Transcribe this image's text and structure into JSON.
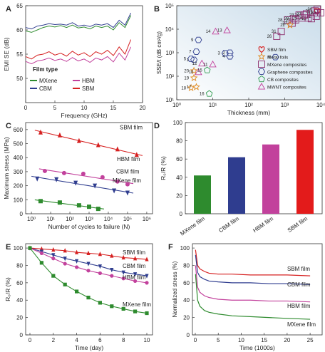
{
  "figure": {
    "panels": [
      "A",
      "B",
      "C",
      "D",
      "E",
      "F"
    ]
  },
  "chart_data": [
    {
      "panel": "A",
      "type": "line",
      "xlabel": "Frequency (GHz)",
      "ylabel": "EMI SE (dB)",
      "xlim": [
        0,
        20
      ],
      "ylim": [
        45,
        65
      ],
      "xticks": [
        "0",
        "5",
        "10",
        "15",
        "20"
      ],
      "yticks": [
        "50",
        "55",
        "60",
        "65"
      ],
      "legend_title": "Film type",
      "legend": [
        {
          "name": "MXene",
          "color": "#2e8b2e"
        },
        {
          "name": "HBM",
          "color": "#c2419c"
        },
        {
          "name": "CBM",
          "color": "#2f3d8f"
        },
        {
          "name": "SBM",
          "color": "#d62020"
        }
      ],
      "series": [
        {
          "name": "CBM",
          "color": "#2f3d8f",
          "x": [
            0,
            1,
            2,
            3,
            4,
            5,
            6,
            7,
            8,
            9,
            10,
            11,
            12,
            13,
            14,
            15,
            16,
            17,
            18
          ],
          "y": [
            60.5,
            60.2,
            60.8,
            61.0,
            61.3,
            61.1,
            61.2,
            61.0,
            61.5,
            60.8,
            61.0,
            60.7,
            61.2,
            61.0,
            61.3,
            60.5,
            62.0,
            61.0,
            63.5
          ]
        },
        {
          "name": "MXene",
          "color": "#2e8b2e",
          "x": [
            0,
            1,
            2,
            3,
            4,
            5,
            6,
            7,
            8,
            9,
            10,
            11,
            12,
            13,
            14,
            15,
            16,
            17,
            18
          ],
          "y": [
            59.8,
            59.5,
            60.0,
            60.5,
            60.8,
            60.6,
            60.9,
            60.5,
            61.0,
            60.4,
            60.6,
            60.2,
            60.8,
            60.5,
            60.8,
            60.0,
            61.5,
            60.5,
            63.0
          ]
        },
        {
          "name": "SBM",
          "color": "#d62020",
          "x": [
            0,
            1,
            2,
            3,
            4,
            5,
            6,
            7,
            8,
            9,
            10,
            11,
            12,
            13,
            14,
            15,
            16,
            17,
            18
          ],
          "y": [
            54.5,
            54.0,
            54.8,
            55.0,
            55.5,
            54.8,
            55.2,
            54.6,
            55.6,
            54.8,
            55.3,
            54.5,
            55.5,
            55.0,
            55.8,
            54.7,
            56.5,
            55.0,
            58.0
          ]
        },
        {
          "name": "HBM",
          "color": "#c2419c",
          "x": [
            0,
            1,
            2,
            3,
            4,
            5,
            6,
            7,
            8,
            9,
            10,
            11,
            12,
            13,
            14,
            15,
            16,
            17,
            18
          ],
          "y": [
            53.5,
            53.0,
            53.6,
            53.8,
            54.2,
            53.7,
            54.0,
            53.5,
            54.3,
            53.6,
            54.0,
            53.3,
            54.2,
            53.8,
            54.5,
            53.4,
            55.2,
            53.8,
            56.5
          ]
        }
      ]
    },
    {
      "panel": "B",
      "type": "scatter",
      "xlabel": "Thickness (mm)",
      "ylabel": "SSE/t (dB cm²/g)",
      "xscale": "log",
      "yscale": "log",
      "xticks": [
        "10⁰",
        "10¹",
        "10²",
        "10³",
        "10⁴"
      ],
      "yticks": [
        "10¹",
        "10²",
        "10³",
        "10⁴",
        "10⁵"
      ],
      "legend": [
        {
          "name": "SBM film",
          "color": "#d62020",
          "marker": "heart"
        },
        {
          "name": "Metal foils",
          "color": "#e08a20",
          "marker": "star"
        },
        {
          "name": "MXene composites",
          "color": "#8b2b6b",
          "marker": "square"
        },
        {
          "name": "Graphene composites",
          "color": "#2f3d8f",
          "marker": "hexagon"
        },
        {
          "name": "CB composites",
          "color": "#2e9b4e",
          "marker": "pentagon"
        },
        {
          "name": "MWNT composites",
          "color": "#c2419c",
          "marker": "triangle"
        }
      ],
      "points": [
        {
          "label": "SBM",
          "group": "SBM film",
          "x": 8000,
          "y": 60000
        },
        {
          "label": "36",
          "group": "MXene composites",
          "x": 8000,
          "y": 70000
        },
        {
          "label": "35",
          "group": "MXene composites",
          "x": 7000,
          "y": 60000
        },
        {
          "label": "30",
          "group": "MXene composites",
          "x": 10000,
          "y": 50000
        },
        {
          "label": "31",
          "group": "MXene composites",
          "x": 8000,
          "y": 50000
        },
        {
          "label": "32",
          "group": "MXene composites",
          "x": 7500,
          "y": 35000
        },
        {
          "label": "33",
          "group": "MXene composites",
          "x": 5500,
          "y": 28000
        },
        {
          "label": "34",
          "group": "MXene composites",
          "x": 4500,
          "y": 30000
        },
        {
          "label": "24",
          "group": "MXene composites",
          "x": 3500,
          "y": 40000
        },
        {
          "label": "21",
          "group": "MXene composites",
          "x": 4000,
          "y": 45000
        },
        {
          "label": "23",
          "group": "MXene composites",
          "x": 2500,
          "y": 40000
        },
        {
          "label": "25",
          "group": "MXene composites",
          "x": 3000,
          "y": 30000
        },
        {
          "label": "27",
          "group": "MXene composites",
          "x": 2000,
          "y": 25000
        },
        {
          "label": "28",
          "group": "MXene composites",
          "x": 1200,
          "y": 25000
        },
        {
          "label": "29",
          "group": "MXene composites",
          "x": 1800,
          "y": 28000
        },
        {
          "label": "37",
          "group": "MXene composites",
          "x": 1600,
          "y": 18000
        },
        {
          "label": "26",
          "group": "MXene composites",
          "x": 600,
          "y": 5000
        },
        {
          "label": "31",
          "group": "MXene composites",
          "x": 800,
          "y": 8000
        },
        {
          "label": "22",
          "group": "Metal foils",
          "x": 1400,
          "y": 15000
        },
        {
          "label": "9",
          "group": "Graphene composites",
          "x": 4,
          "y": 3500
        },
        {
          "label": "7",
          "group": "Graphene composites",
          "x": 3.5,
          "y": 1100
        },
        {
          "label": "4",
          "group": "Graphene composites",
          "x": 30,
          "y": 700
        },
        {
          "label": "2",
          "group": "Graphene composites",
          "x": 30,
          "y": 1000
        },
        {
          "label": "3",
          "group": "Graphene composites",
          "x": 22,
          "y": 950
        },
        {
          "label": "5",
          "group": "Graphene composites",
          "x": 2.5,
          "y": 550
        },
        {
          "label": "1",
          "group": "Graphene composites",
          "x": 3,
          "y": 500
        },
        {
          "label": "6",
          "group": "Graphene composites",
          "x": 550,
          "y": 650
        },
        {
          "label": "14",
          "group": "MWNT composites",
          "x": 12,
          "y": 8000
        },
        {
          "label": "13",
          "group": "MWNT composites",
          "x": 25,
          "y": 9000
        },
        {
          "label": "12",
          "group": "MWNT composites",
          "x": 5,
          "y": 350
        },
        {
          "label": "11",
          "group": "MWNT composites",
          "x": 10,
          "y": 320
        },
        {
          "label": "20",
          "group": "Metal foils",
          "x": 3,
          "y": 170
        },
        {
          "label": "10",
          "group": "MWNT composites",
          "x": 4,
          "y": 150
        },
        {
          "label": "19",
          "group": "Metal foils",
          "x": 3,
          "y": 85
        },
        {
          "label": "15",
          "group": "CB composites",
          "x": 7,
          "y": 180
        },
        {
          "label": "18",
          "group": "Metal foils",
          "x": 2.5,
          "y": 32
        },
        {
          "label": "17",
          "group": "Metal foils",
          "x": 3.5,
          "y": 35
        },
        {
          "label": "16",
          "group": "CB composites",
          "x": 8,
          "y": 18
        }
      ]
    },
    {
      "panel": "C",
      "type": "scatter",
      "xlabel": "Number of cycles to failure (N)",
      "ylabel": "Maximum stress (MPa)",
      "xscale": "log",
      "xticks": [
        "10⁰",
        "10¹",
        "10²",
        "10³",
        "10⁴",
        "10⁵",
        "10⁶"
      ],
      "yticks": [
        "0",
        "100",
        "200",
        "300",
        "400",
        "500",
        "600"
      ],
      "ylim": [
        0,
        650
      ],
      "series": [
        {
          "name": "SBM film",
          "color": "#d62020",
          "marker": "triangle",
          "x": [
            3,
            30,
            300,
            3000,
            30000,
            300000
          ],
          "y": [
            580,
            560,
            520,
            490,
            460,
            420
          ]
        },
        {
          "name": "HBM film",
          "color": "#c2419c",
          "marker": "circle",
          "x": [
            5,
            50,
            500,
            5000,
            30000,
            100000
          ],
          "y": [
            305,
            290,
            285,
            260,
            230,
            210
          ]
        },
        {
          "name": "CBM film",
          "color": "#2f3d8f",
          "marker": "triangle-down",
          "x": [
            2,
            20,
            200,
            2000,
            20000,
            100000
          ],
          "y": [
            250,
            245,
            220,
            200,
            165,
            150
          ]
        },
        {
          "name": "MXene film",
          "color": "#2e8b2e",
          "marker": "square",
          "x": [
            3,
            30,
            300,
            1000,
            3000
          ],
          "y": [
            90,
            80,
            60,
            50,
            35
          ]
        }
      ]
    },
    {
      "panel": "D",
      "type": "bar",
      "ylabel": "R₀/R (%)",
      "ylim": [
        0,
        100
      ],
      "yticks": [
        "0",
        "20",
        "40",
        "60",
        "80",
        "100"
      ],
      "categories": [
        "MXene film",
        "CBM film",
        "HBM film",
        "SBM film"
      ],
      "values": [
        42,
        62,
        76,
        92
      ],
      "colors": [
        "#2e8b2e",
        "#2f3d8f",
        "#c2419c",
        "#e31b1b"
      ]
    },
    {
      "panel": "E",
      "type": "line",
      "xlabel": "Time (day)",
      "ylabel": "R₀/R (%)",
      "xlim": [
        0,
        10
      ],
      "ylim": [
        0,
        105
      ],
      "xticks": [
        "0",
        "2",
        "4",
        "6",
        "8",
        "10"
      ],
      "yticks": [
        "0",
        "20",
        "40",
        "60",
        "80",
        "100"
      ],
      "x": [
        0,
        1,
        2,
        3,
        4,
        5,
        6,
        7,
        8,
        9,
        10
      ],
      "series": [
        {
          "name": "SBM film",
          "color": "#d62020",
          "marker": "triangle",
          "values": [
            100,
            99,
            98,
            97,
            95,
            94,
            93,
            91,
            89,
            88,
            87
          ]
        },
        {
          "name": "CBM film",
          "color": "#2f3d8f",
          "marker": "triangle-down",
          "values": [
            100,
            96,
            92,
            88,
            85,
            82,
            79,
            75,
            72,
            70,
            68
          ]
        },
        {
          "name": "HBM film",
          "color": "#c2419c",
          "marker": "circle",
          "values": [
            100,
            94,
            88,
            82,
            78,
            74,
            71,
            68,
            65,
            62,
            60
          ]
        },
        {
          "name": "MXene film",
          "color": "#2e8b2e",
          "marker": "square",
          "values": [
            100,
            83,
            68,
            58,
            50,
            43,
            37,
            33,
            30,
            27,
            25
          ]
        }
      ]
    },
    {
      "panel": "F",
      "type": "line",
      "xlabel": "Time (1000s)",
      "ylabel": "Normalized stress (%)",
      "xlim": [
        0,
        27
      ],
      "ylim": [
        0,
        105
      ],
      "xticks": [
        "0",
        "5",
        "10",
        "15",
        "20",
        "25"
      ],
      "yticks": [
        "0",
        "20",
        "40",
        "60",
        "80",
        "100"
      ],
      "series": [
        {
          "name": "SBM film",
          "color": "#d62020",
          "x": [
            0.05,
            0.5,
            1,
            2,
            3,
            5,
            8,
            12,
            16,
            20,
            25
          ],
          "y": [
            98,
            80,
            76,
            73,
            71,
            70,
            70,
            69,
            69,
            69,
            68
          ]
        },
        {
          "name": "CBM film",
          "color": "#2f3d8f",
          "x": [
            0.05,
            0.5,
            1,
            2,
            3,
            5,
            8,
            12,
            16,
            20,
            25
          ],
          "y": [
            92,
            72,
            67,
            64,
            62,
            61,
            60,
            60,
            59,
            59,
            58
          ]
        },
        {
          "name": "HBM film",
          "color": "#c2419c",
          "x": [
            0.05,
            0.5,
            1,
            2,
            3,
            5,
            8,
            12,
            16,
            20,
            25
          ],
          "y": [
            80,
            55,
            49,
            45,
            43,
            41,
            40,
            40,
            39,
            39,
            38
          ]
        },
        {
          "name": "MXene film",
          "color": "#2e8b2e",
          "x": [
            0.05,
            0.5,
            1,
            2,
            3,
            5,
            8,
            12,
            16,
            20,
            25
          ],
          "y": [
            70,
            40,
            33,
            28,
            26,
            24,
            22,
            21,
            20,
            19,
            18
          ]
        }
      ]
    }
  ]
}
